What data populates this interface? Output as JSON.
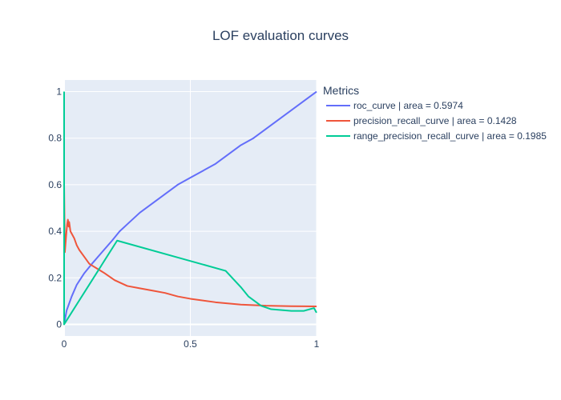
{
  "chart_data": {
    "type": "line",
    "title": "LOF evaluation curves",
    "xlabel": "",
    "ylabel": "",
    "xlim": [
      0,
      1
    ],
    "ylim": [
      -0.05,
      1.05
    ],
    "x_ticks": [
      {
        "value": 0,
        "label": "0"
      },
      {
        "value": 0.5,
        "label": "0.5"
      },
      {
        "value": 1,
        "label": "1"
      }
    ],
    "y_ticks": [
      {
        "value": 0,
        "label": "0"
      },
      {
        "value": 0.2,
        "label": "0.2"
      },
      {
        "value": 0.4,
        "label": "0.4"
      },
      {
        "value": 0.6,
        "label": "0.6"
      },
      {
        "value": 0.8,
        "label": "0.8"
      },
      {
        "value": 1,
        "label": "1"
      }
    ],
    "grid": true,
    "legend": {
      "title": "Metrics",
      "position": "top-right"
    },
    "series": [
      {
        "name": "roc_curve | area = 0.5974",
        "color": "#636efa",
        "points": [
          [
            0,
            0
          ],
          [
            0.01,
            0.06
          ],
          [
            0.03,
            0.12
          ],
          [
            0.05,
            0.17
          ],
          [
            0.08,
            0.22
          ],
          [
            0.11,
            0.26
          ],
          [
            0.15,
            0.31
          ],
          [
            0.19,
            0.36
          ],
          [
            0.22,
            0.4
          ],
          [
            0.26,
            0.44
          ],
          [
            0.3,
            0.48
          ],
          [
            0.35,
            0.52
          ],
          [
            0.4,
            0.56
          ],
          [
            0.45,
            0.6
          ],
          [
            0.5,
            0.63
          ],
          [
            0.55,
            0.66
          ],
          [
            0.6,
            0.69
          ],
          [
            0.65,
            0.73
          ],
          [
            0.7,
            0.77
          ],
          [
            0.75,
            0.8
          ],
          [
            0.8,
            0.84
          ],
          [
            0.85,
            0.88
          ],
          [
            0.9,
            0.92
          ],
          [
            0.95,
            0.96
          ],
          [
            1,
            1.0
          ]
        ]
      },
      {
        "name": "precision_recall_curve | area = 0.1428",
        "color": "#ef553b",
        "points": [
          [
            0,
            0.6
          ],
          [
            0.003,
            0.31
          ],
          [
            0.008,
            0.38
          ],
          [
            0.012,
            0.43
          ],
          [
            0.015,
            0.45
          ],
          [
            0.018,
            0.42
          ],
          [
            0.02,
            0.44
          ],
          [
            0.025,
            0.4
          ],
          [
            0.03,
            0.39
          ],
          [
            0.04,
            0.37
          ],
          [
            0.05,
            0.34
          ],
          [
            0.06,
            0.32
          ],
          [
            0.08,
            0.29
          ],
          [
            0.1,
            0.26
          ],
          [
            0.13,
            0.24
          ],
          [
            0.16,
            0.22
          ],
          [
            0.2,
            0.19
          ],
          [
            0.25,
            0.165
          ],
          [
            0.3,
            0.155
          ],
          [
            0.35,
            0.145
          ],
          [
            0.4,
            0.135
          ],
          [
            0.45,
            0.12
          ],
          [
            0.5,
            0.11
          ],
          [
            0.6,
            0.095
          ],
          [
            0.7,
            0.085
          ],
          [
            0.8,
            0.08
          ],
          [
            0.9,
            0.078
          ],
          [
            1,
            0.077
          ]
        ]
      },
      {
        "name": "range_precision_recall_curve | area = 0.1985",
        "color": "#00cc96",
        "points": [
          [
            0,
            1.0
          ],
          [
            0,
            0
          ],
          [
            0.21,
            0.36
          ],
          [
            0.64,
            0.23
          ],
          [
            0.7,
            0.16
          ],
          [
            0.73,
            0.12
          ],
          [
            0.78,
            0.08
          ],
          [
            0.82,
            0.065
          ],
          [
            0.9,
            0.058
          ],
          [
            0.95,
            0.058
          ],
          [
            0.99,
            0.07
          ],
          [
            1,
            0.05
          ]
        ]
      }
    ]
  }
}
